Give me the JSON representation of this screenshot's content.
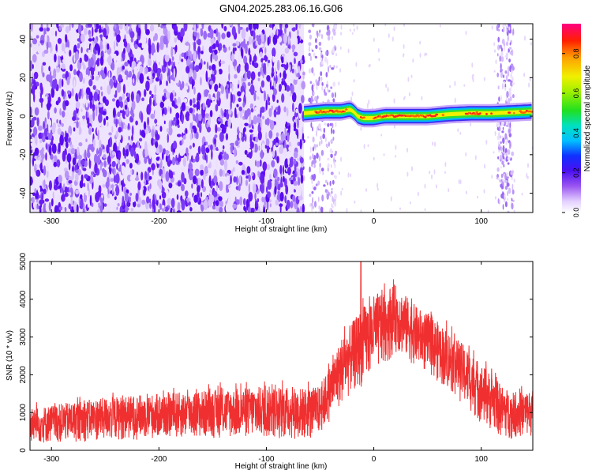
{
  "figure": {
    "title": "GN04.2025.283.06.16.G06"
  },
  "chart_data": [
    {
      "type": "heatmap",
      "xlabel": "Height of straight line (km)",
      "ylabel": "Frequency (Hz)",
      "xlim": [
        -320,
        148
      ],
      "ylim": [
        -50,
        48
      ],
      "xticks": [
        -300,
        -200,
        -100,
        0,
        100
      ],
      "yticks": [
        -40,
        -20,
        0,
        20,
        40
      ],
      "xtick_labels": [
        "-300",
        "-200",
        "-100",
        "0",
        "100"
      ],
      "ytick_labels": [
        "-40",
        "-20",
        "0",
        "20",
        "40"
      ],
      "grid": false,
      "noise_region": {
        "x": [
          -320,
          -65
        ],
        "y": [
          -50,
          48
        ]
      },
      "signal_band": {
        "x": [
          -65,
          148
        ],
        "center_hz": [
          [
            -65,
            1.5
          ],
          [
            -45,
            2.5
          ],
          [
            -30,
            2.5
          ],
          [
            -22,
            3.5
          ],
          [
            -18,
            2
          ],
          [
            -15,
            0
          ],
          [
            -10,
            -1
          ],
          [
            0,
            -1
          ],
          [
            10,
            0
          ],
          [
            30,
            0
          ],
          [
            50,
            0
          ],
          [
            70,
            1
          ],
          [
            90,
            1.5
          ],
          [
            110,
            1.5
          ],
          [
            130,
            2
          ],
          [
            148,
            2.5
          ]
        ],
        "half_width_hz": 3
      },
      "sparse_columns": [
        {
          "x": [
            -60,
            -35
          ],
          "y": [
            -50,
            48
          ]
        },
        {
          "x": [
            115,
            130
          ],
          "y": [
            -50,
            48
          ]
        }
      ],
      "colorbar": {
        "label": "Normalized spectral amplitude",
        "range": [
          0,
          0.95
        ],
        "ticks": [
          0,
          0.2,
          0.4,
          0.6,
          0.8
        ],
        "tick_labels": [
          "0.0",
          "0.2",
          "0.4",
          "0.6",
          "0.8"
        ]
      }
    },
    {
      "type": "line",
      "xlabel": "Height of straight line (km)",
      "ylabel": "SNR (10 * v/v)",
      "xlim": [
        -320,
        148
      ],
      "ylim": [
        0,
        5000
      ],
      "xticks": [
        -300,
        -200,
        -100,
        0,
        100
      ],
      "yticks": [
        0,
        1000,
        2000,
        3000,
        4000,
        5000
      ],
      "xtick_labels": [
        "-300",
        "-200",
        "-100",
        "0",
        "100"
      ],
      "ytick_labels": [
        "0",
        "1000",
        "2000",
        "3000",
        "4000",
        "5000"
      ],
      "grid": false,
      "color": "#f03030",
      "series_profile": {
        "x": [
          -320,
          -300,
          -250,
          -200,
          -150,
          -100,
          -60,
          -50,
          -40,
          -30,
          -20,
          -10,
          0,
          10,
          20,
          30,
          40,
          60,
          80,
          100,
          120,
          130,
          148
        ],
        "y_low": [
          150,
          180,
          250,
          300,
          300,
          300,
          250,
          400,
          800,
          1200,
          1500,
          1700,
          2000,
          2200,
          2600,
          2400,
          2200,
          1800,
          1300,
          700,
          300,
          300,
          350
        ],
        "y_high": [
          1100,
          1200,
          1400,
          1500,
          1600,
          1700,
          1650,
          1700,
          2300,
          3000,
          3400,
          3800,
          4100,
          4300,
          4400,
          4100,
          3800,
          3400,
          2900,
          2300,
          1700,
          1500,
          1600
        ]
      },
      "peak": {
        "x": -12,
        "y": 5000
      }
    }
  ]
}
